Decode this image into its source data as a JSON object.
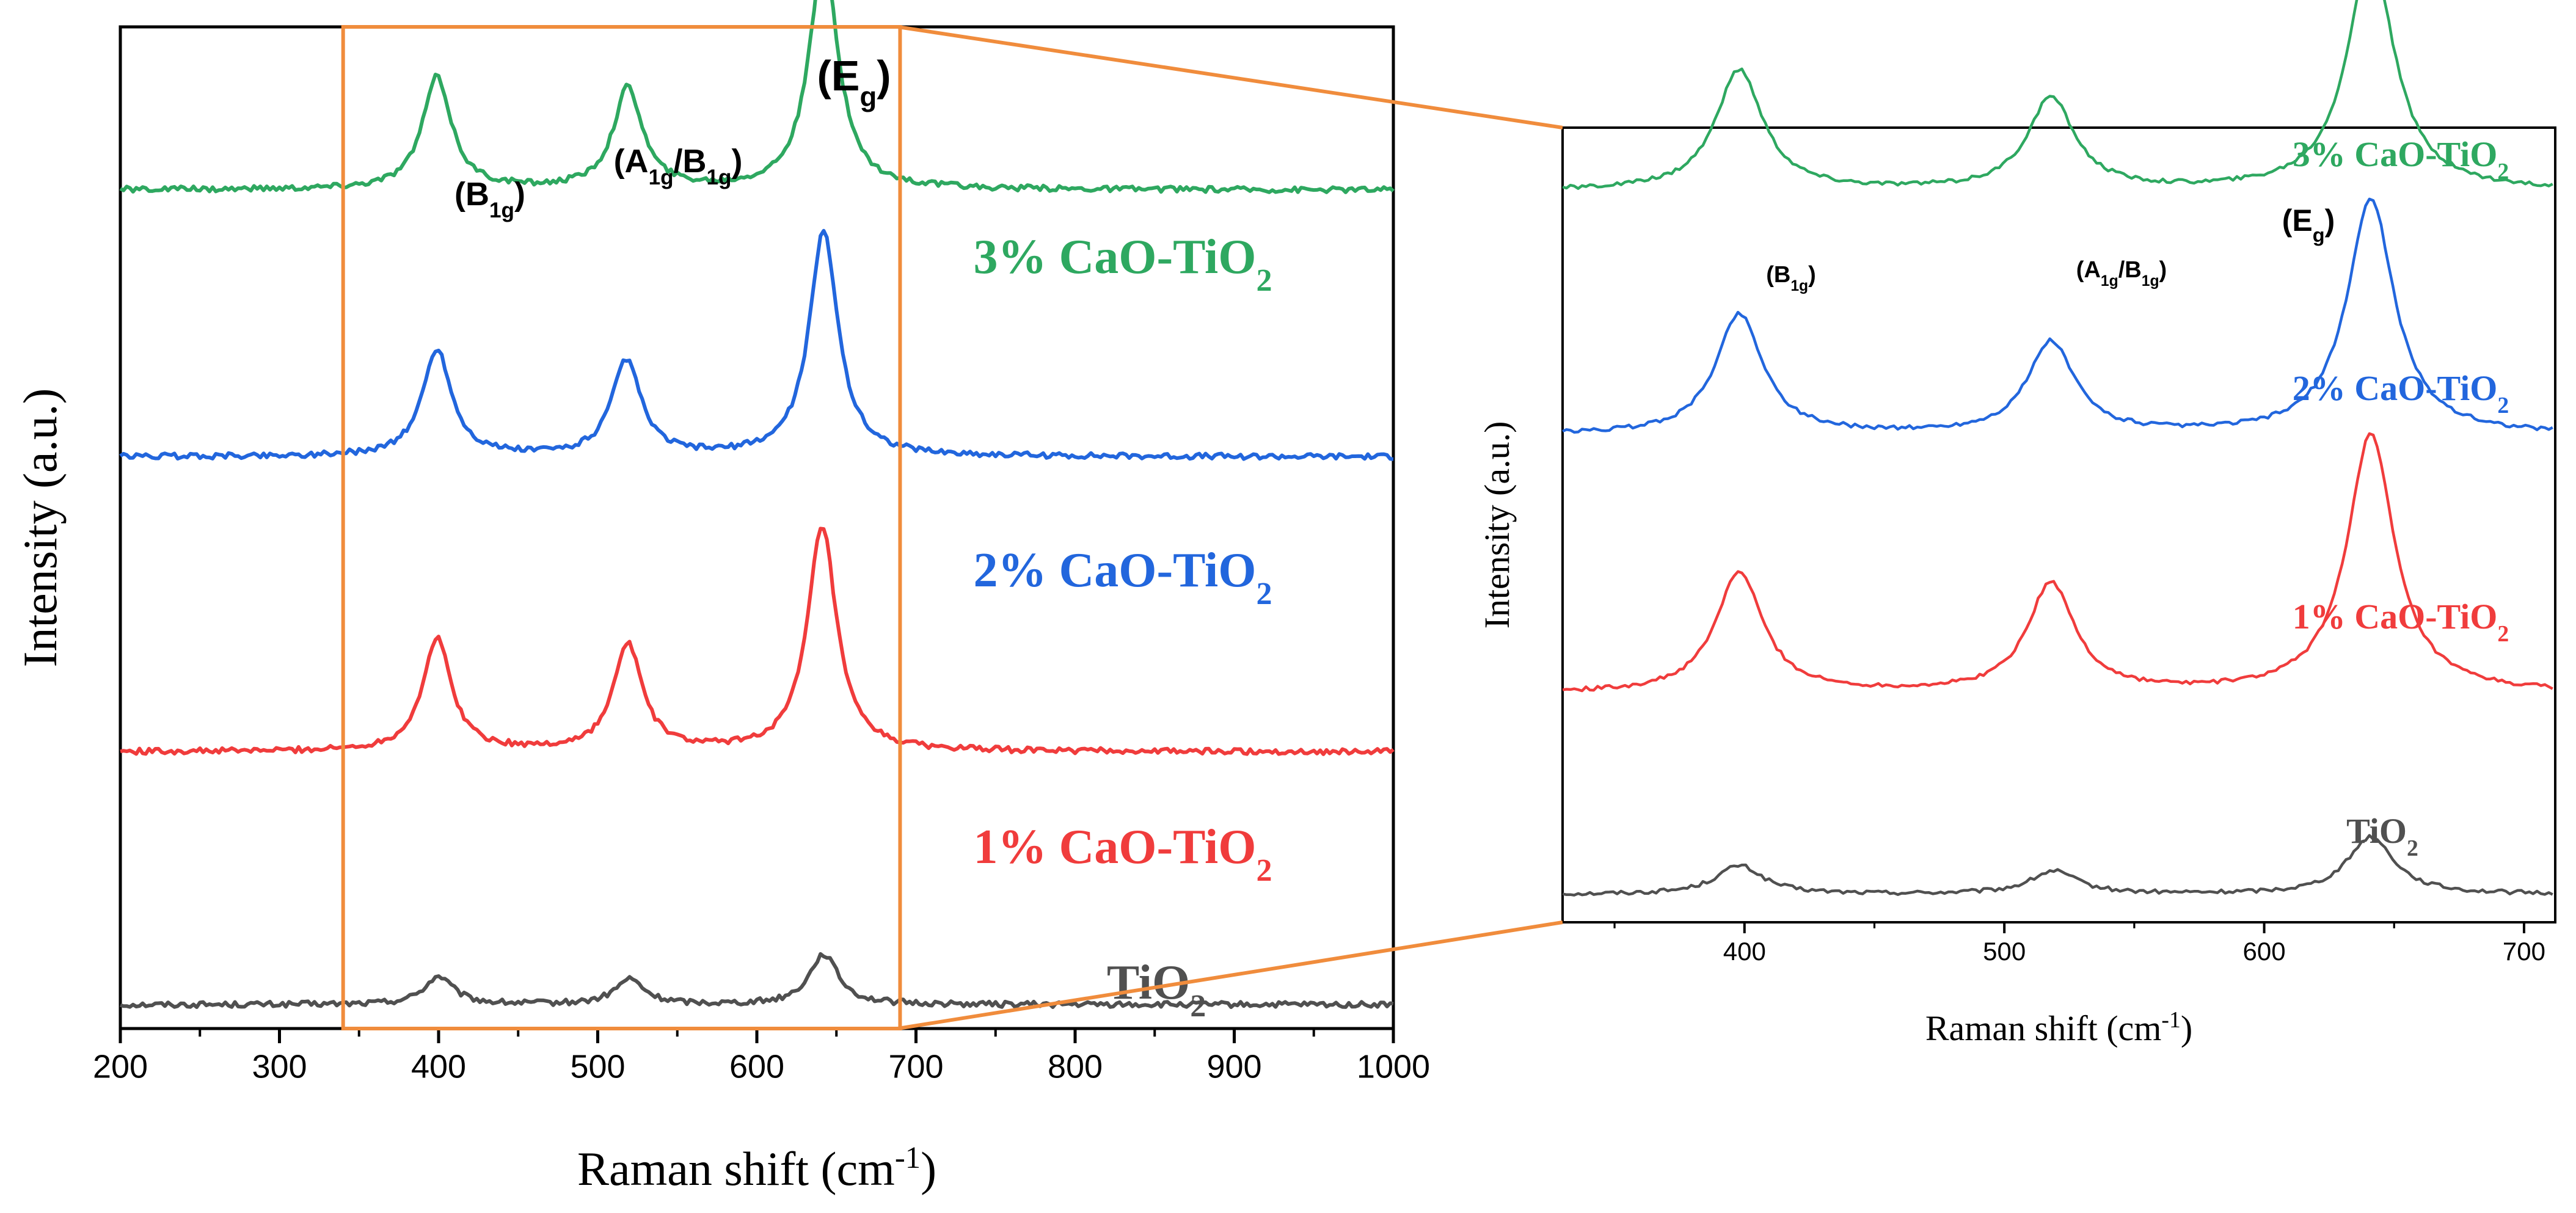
{
  "chart_data": [
    {
      "id": "main",
      "type": "line",
      "xlabel": "Raman shift (cm",
      "xlabel_sup": "-1",
      "xlabel_end": ")",
      "ylabel": "Intensity (a.u.)",
      "xlim": [
        200,
        1000
      ],
      "xticks": [
        "200",
        "300",
        "400",
        "500",
        "600",
        "700",
        "800",
        "900",
        "1000"
      ],
      "yticks": [],
      "grid": false,
      "legend": "none (labels inline next to each curve)",
      "zoom_region": [
        340,
        690
      ],
      "peak_labels": [
        {
          "main": "(B",
          "sub": "1g",
          "end": ")",
          "x": 400
        },
        {
          "main": "(A",
          "sub": "1g",
          "mid": "/B",
          "sub2": "1g",
          "end": ")",
          "x": 518
        },
        {
          "main": "(E",
          "sub": "g",
          "end": ")",
          "x": 642
        }
      ],
      "series": [
        {
          "name": "TiO2",
          "label_main": "TiO",
          "label_sub": "2",
          "color": "#505050",
          "baseline": 0.05,
          "peaks": [
            [
              400,
              0.1
            ],
            [
              520,
              0.09
            ],
            [
              642,
              0.18
            ]
          ]
        },
        {
          "name": "1% CaO-TiO2",
          "label_main": "1% CaO-TiO",
          "label_sub": "2",
          "color": "#f03c3c",
          "baseline": 0.95,
          "peaks": [
            [
              399,
              0.4
            ],
            [
              519,
              0.38
            ],
            [
              641,
              0.8
            ]
          ]
        },
        {
          "name": "2% CaO-TiO2",
          "label_main": "2% CaO-TiO",
          "label_sub": "2",
          "color": "#2266dd",
          "baseline": 2.0,
          "peaks": [
            [
              399,
              0.38
            ],
            [
              518,
              0.34
            ],
            [
              642,
              0.8
            ]
          ]
        },
        {
          "name": "3% CaO-TiO2",
          "label_main": "3% CaO-TiO",
          "label_sub": "2",
          "color": "#2ea860",
          "baseline": 2.95,
          "peaks": [
            [
              399,
              0.4
            ],
            [
              519,
              0.36
            ],
            [
              642,
              0.83
            ]
          ]
        }
      ]
    },
    {
      "id": "inset",
      "type": "line",
      "xlabel": "Raman shift (cm",
      "xlabel_sup": "-1",
      "xlabel_end": ")",
      "ylabel": "Intensity (a.u.)",
      "xlim": [
        330,
        712
      ],
      "xticks": [
        "400",
        "500",
        "600",
        "700"
      ],
      "yticks": [],
      "grid": false,
      "legend": "none (labels inline above each curve)",
      "peak_labels": [
        {
          "main": "(B",
          "sub": "1g",
          "end": ")",
          "x": 400
        },
        {
          "main": "(A",
          "sub": "1g",
          "mid": "/B",
          "sub2": "1g",
          "end": ")",
          "x": 518
        },
        {
          "main": "(E",
          "sub": "g",
          "end": ")",
          "x": 642
        }
      ],
      "series": [
        {
          "name": "TiO2",
          "label_main": "TiO",
          "label_sub": "2",
          "color": "#505050",
          "baseline": 0.05,
          "peaks": [
            [
              398,
              0.1
            ],
            [
              519,
              0.08
            ],
            [
              641,
              0.2
            ]
          ]
        },
        {
          "name": "1% CaO-TiO2",
          "label_main": "1% CaO-TiO",
          "label_sub": "2",
          "color": "#f03c3c",
          "baseline": 0.75,
          "peaks": [
            [
              398,
              0.42
            ],
            [
              518,
              0.38
            ],
            [
              641,
              0.9
            ]
          ]
        },
        {
          "name": "2% CaO-TiO2",
          "label_main": "2% CaO-TiO",
          "label_sub": "2",
          "color": "#2266dd",
          "baseline": 1.65,
          "peaks": [
            [
              398,
              0.42
            ],
            [
              518,
              0.32
            ],
            [
              641,
              0.82
            ]
          ]
        },
        {
          "name": "3% CaO-TiO2",
          "label_main": "3% CaO-TiO",
          "label_sub": "2",
          "color": "#2ea860",
          "baseline": 2.5,
          "peaks": [
            [
              398,
              0.42
            ],
            [
              518,
              0.32
            ],
            [
              641,
              0.82
            ]
          ]
        }
      ]
    }
  ]
}
